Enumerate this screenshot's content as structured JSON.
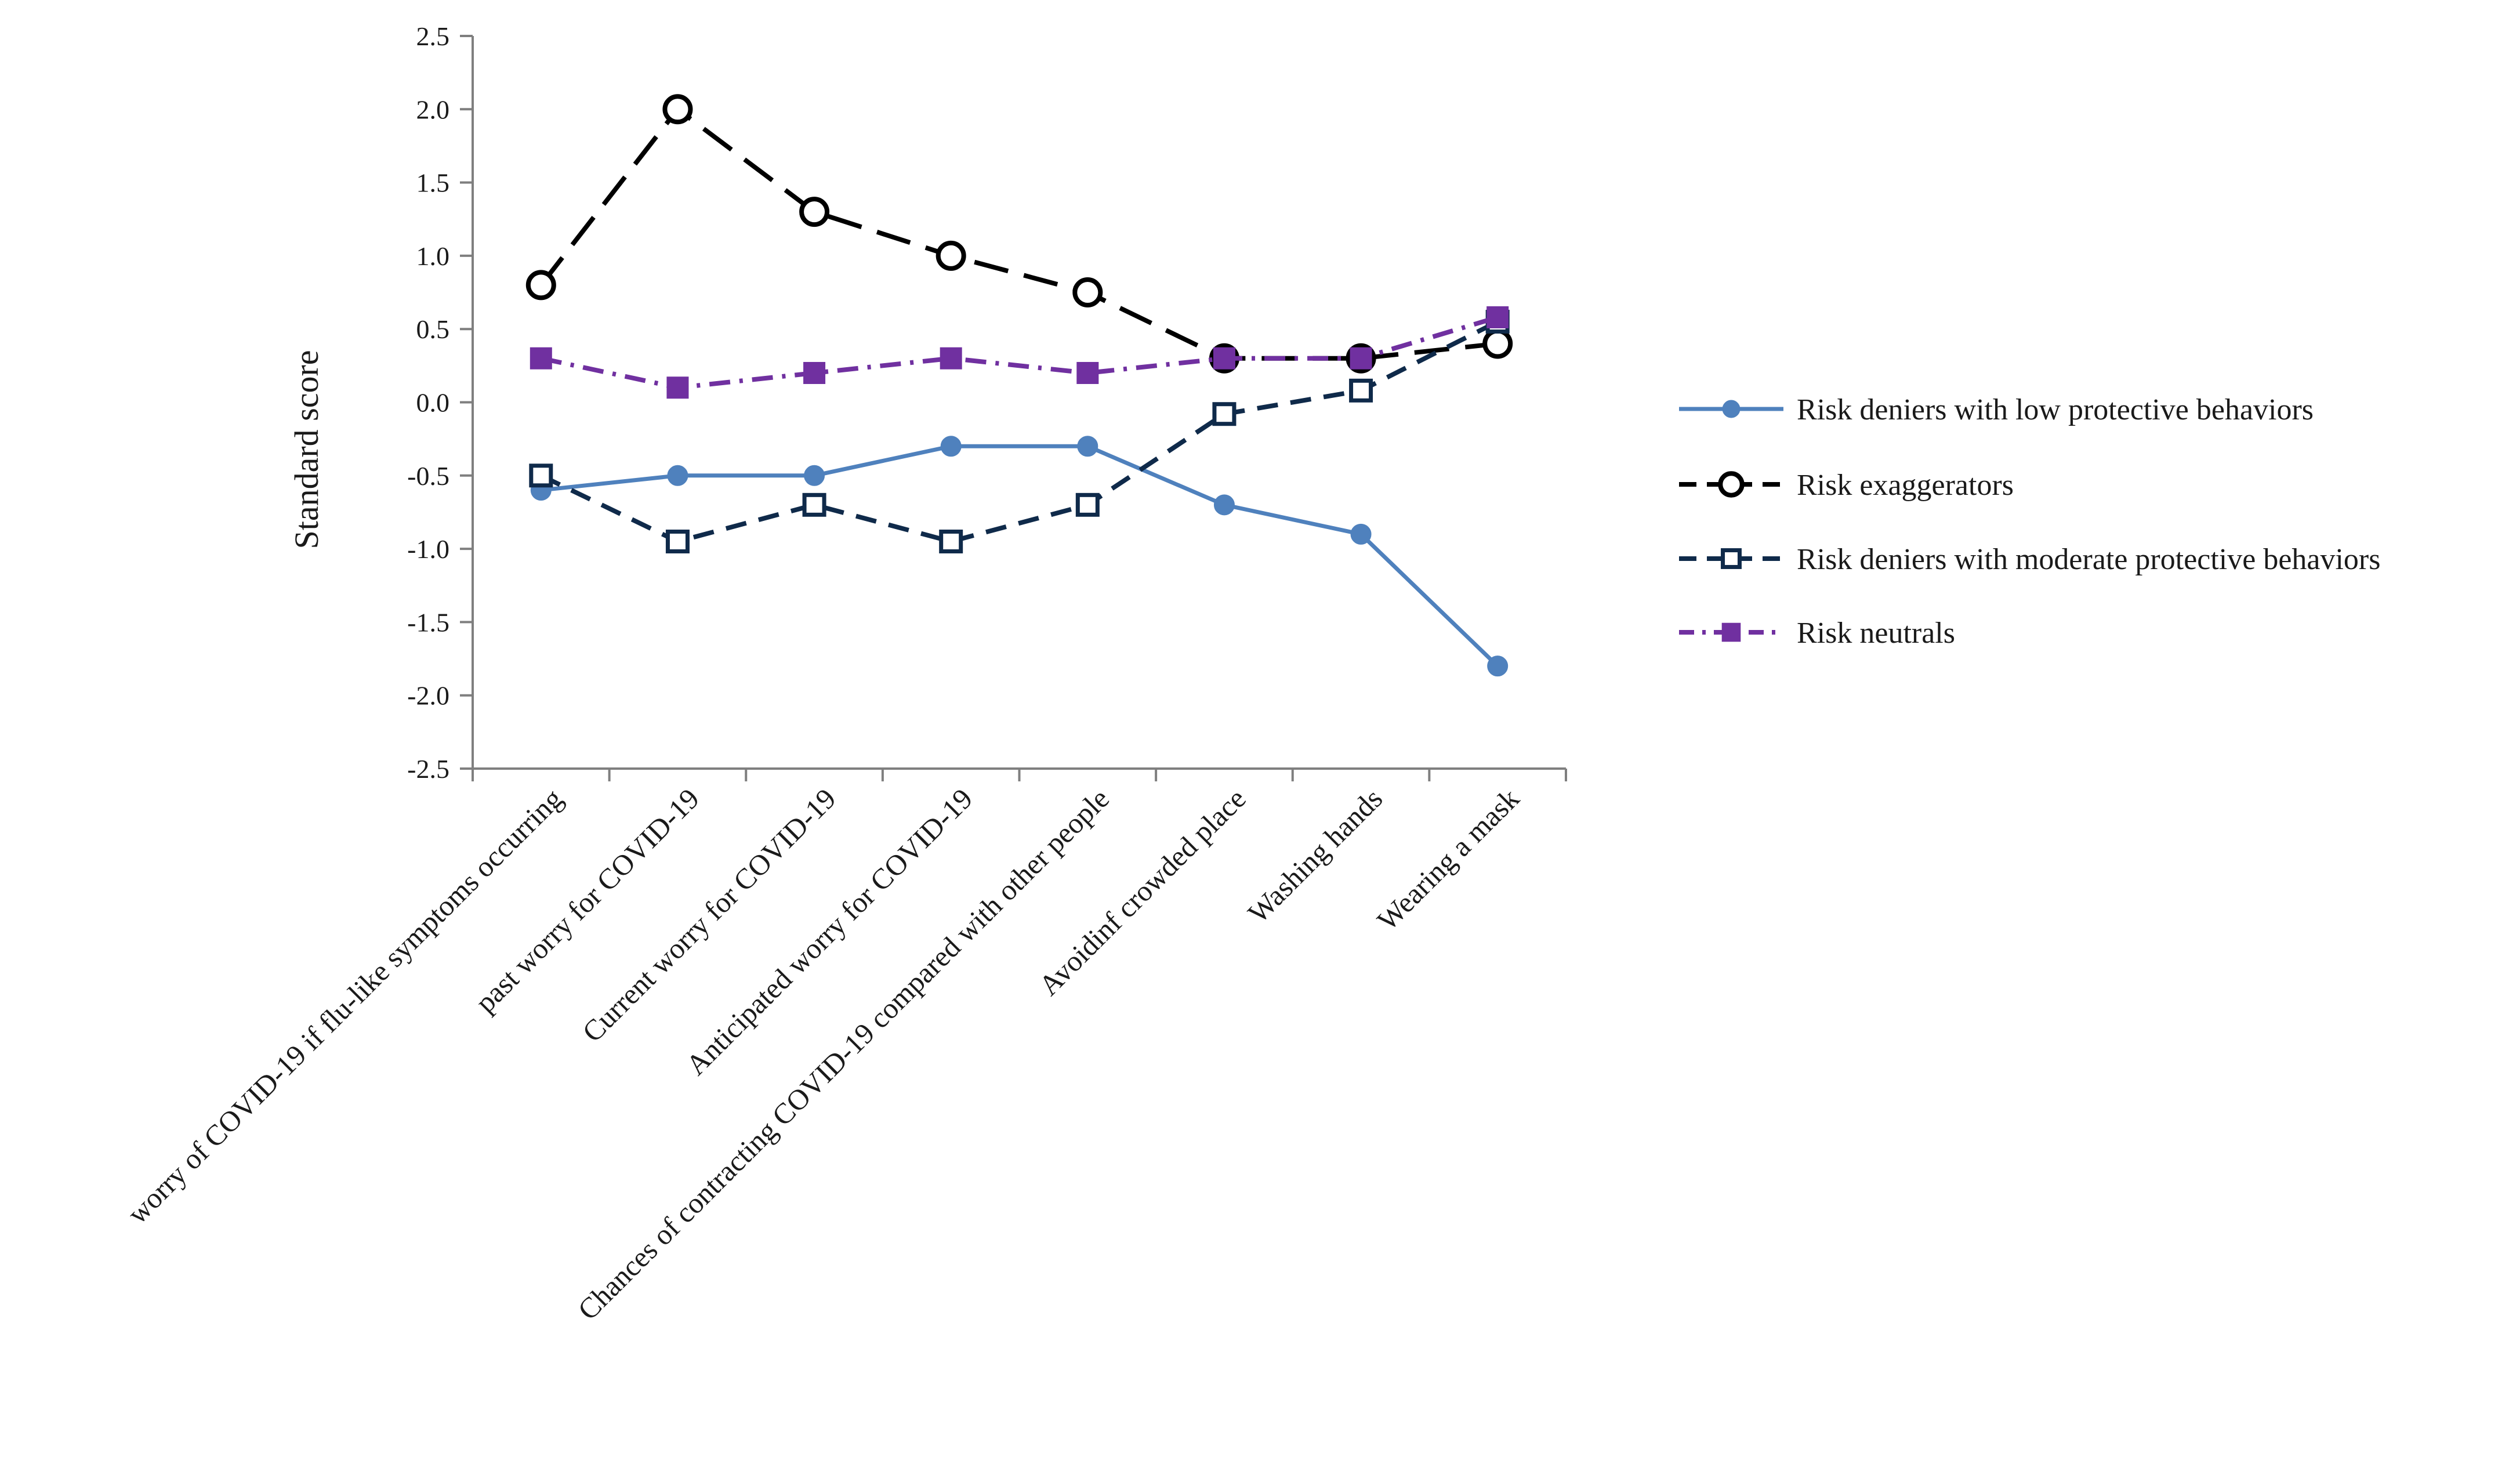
{
  "chart_data": {
    "type": "line",
    "title": "",
    "xlabel": "",
    "ylabel": "Standard score",
    "ylim": [
      -2.5,
      2.5
    ],
    "yticks": [
      -2.5,
      -2.0,
      -1.5,
      -1.0,
      -0.5,
      0.0,
      0.5,
      1.0,
      1.5,
      2.0,
      2.5
    ],
    "ytick_labels": [
      "-2.5",
      "-2.0",
      "-1.5",
      "-1.0",
      "-0.5",
      "0.0",
      "0.5",
      "1.0",
      "1.5",
      "2.0",
      "2.5"
    ],
    "grid": false,
    "legend_position": "right",
    "categories": [
      "worry of COVID-19 if flu-like symptoms occurring",
      "past worry for COVID-19",
      "Current worry for COVID-19",
      "Anticipated worry for COVID-19",
      "Chances of contracting COVID-19 compared with other people",
      "Avoidinf crowded place",
      "Washing hands",
      "Wearing a mask"
    ],
    "series": [
      {
        "name": "Risk deniers with low protective behaviors",
        "values": [
          -0.6,
          -0.5,
          -0.5,
          -0.3,
          -0.3,
          -0.7,
          -0.9,
          -1.8
        ],
        "color": "#4f81bd",
        "line_style": "solid",
        "marker": "filled-circle"
      },
      {
        "name": "Risk exaggerators",
        "values": [
          0.8,
          2.0,
          1.3,
          1.0,
          0.75,
          0.3,
          0.3,
          0.4
        ],
        "color": "#000000",
        "line_style": "long-dash",
        "marker": "open-circle"
      },
      {
        "name": "Risk deniers with moderate protective behaviors",
        "values": [
          -0.5,
          -0.95,
          -0.7,
          -0.95,
          -0.7,
          -0.08,
          0.08,
          0.55
        ],
        "color": "#0f2a4a",
        "line_style": "dash",
        "marker": "open-square"
      },
      {
        "name": "Risk neutrals",
        "values": [
          0.3,
          0.1,
          0.2,
          0.3,
          0.2,
          0.3,
          0.3,
          0.58
        ],
        "color": "#7030a0",
        "line_style": "dash-dot",
        "marker": "filled-square"
      }
    ]
  }
}
